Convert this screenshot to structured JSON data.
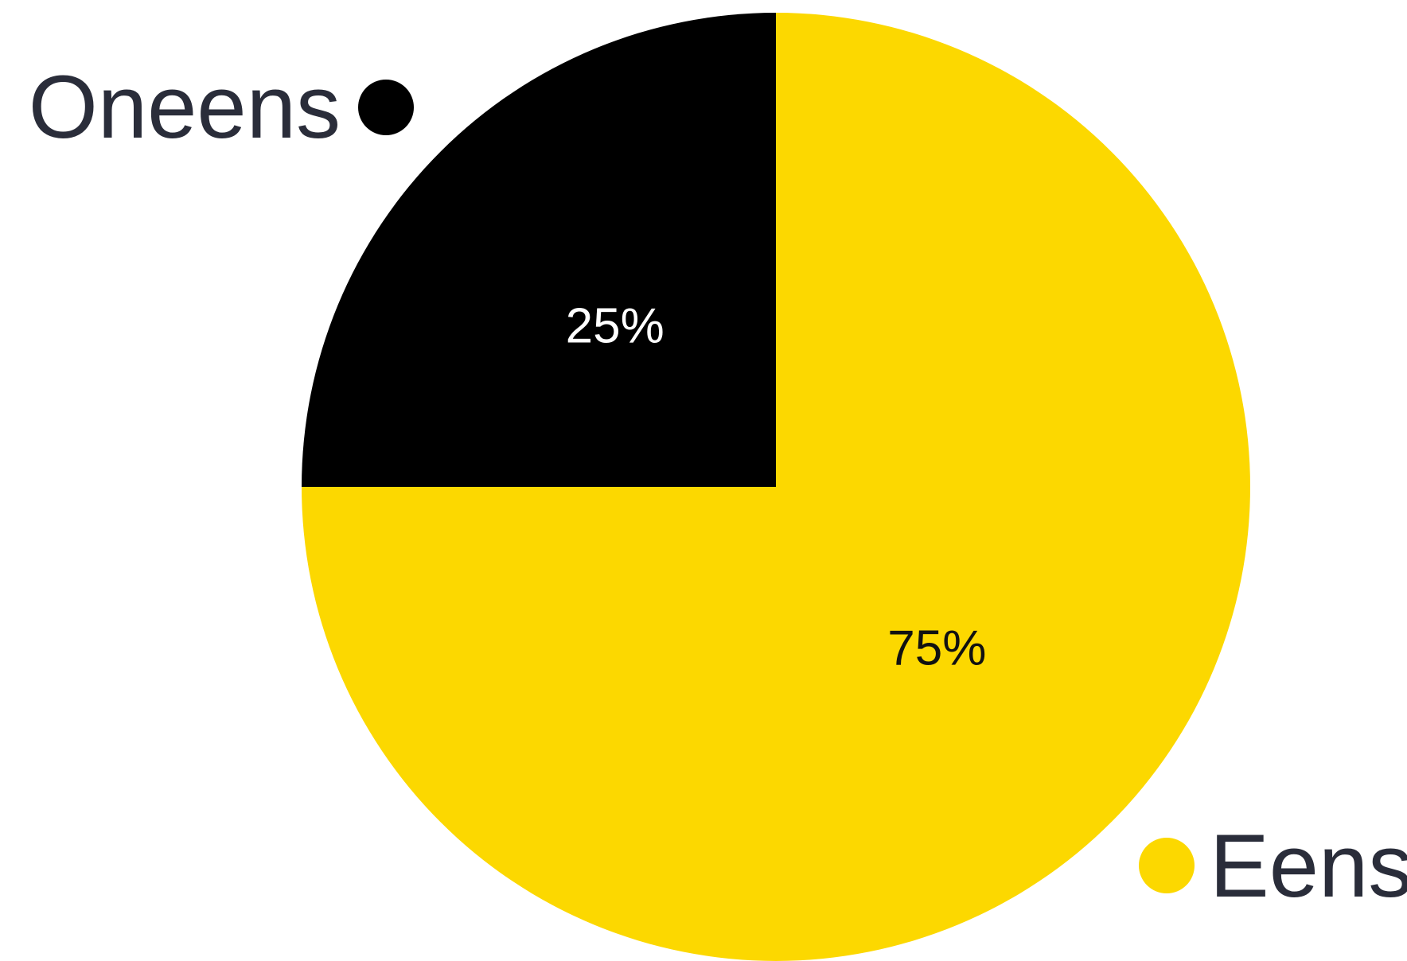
{
  "chart_data": {
    "type": "pie",
    "title": "",
    "slices": [
      {
        "name": "Eens",
        "value": 75,
        "label": "75%",
        "color": "#FCD800",
        "label_color": "#111111"
      },
      {
        "name": "Oneens",
        "value": 25,
        "label": "25%",
        "color": "#000000",
        "label_color": "#ffffff"
      }
    ],
    "legend": [
      {
        "name": "Oneens",
        "color": "#000000",
        "placement": "top-left"
      },
      {
        "name": "Eens",
        "color": "#FCD800",
        "placement": "bottom-right"
      }
    ]
  }
}
